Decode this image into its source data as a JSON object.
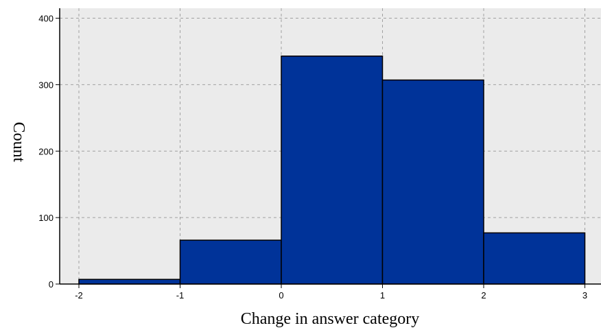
{
  "chart_data": {
    "type": "bar",
    "subtype": "histogram",
    "title": "",
    "xlabel": "Change in answer category",
    "ylabel": "Count",
    "bins": [
      {
        "x0": -2,
        "x1": -1,
        "count": 7
      },
      {
        "x0": -1,
        "x1": 0,
        "count": 66
      },
      {
        "x0": 0,
        "x1": 1,
        "count": 343
      },
      {
        "x0": 1,
        "x1": 2,
        "count": 307
      },
      {
        "x0": 2,
        "x1": 3,
        "count": 77
      }
    ],
    "xlim": [
      -2.2,
      3.0
    ],
    "ylim": [
      0,
      415
    ],
    "x_ticks": [
      -2,
      -1,
      0,
      1,
      2,
      3
    ],
    "x_tick_labels": [
      "-2",
      "-1",
      "0",
      "1",
      "2",
      "3"
    ],
    "y_ticks": [
      0,
      100,
      200,
      300,
      400
    ],
    "y_tick_labels": [
      "0",
      "100",
      "200",
      "300",
      "400"
    ],
    "grid": true,
    "grid_style": "dashed",
    "legend": "none",
    "colors": {
      "bar_fill": "#003399",
      "bar_edge": "#000000",
      "plot_background": "#ebebeb",
      "grid": "#a0a0a0",
      "axis": "#000000"
    }
  }
}
